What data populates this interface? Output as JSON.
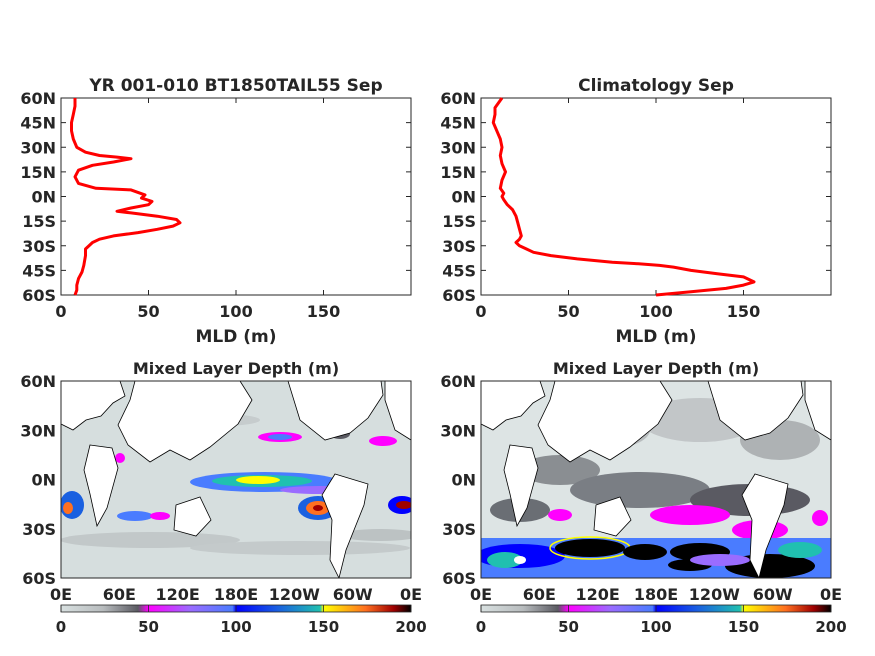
{
  "chart_data": [
    {
      "type": "line",
      "title": "YR 001-010 BT1850TAIL55 Sep",
      "xlabel": "MLD (m)",
      "ylabel": "",
      "xlim": [
        0,
        200
      ],
      "ylim": [
        -60,
        60
      ],
      "xticks": [
        "0",
        "50",
        "100",
        "150"
      ],
      "yticks": [
        "60N",
        "45N",
        "30N",
        "15N",
        "0N",
        "15S",
        "30S",
        "45S",
        "60S"
      ],
      "color": "#ff0000",
      "series": [
        {
          "x": [
            8,
            8,
            7,
            6,
            6,
            7,
            9,
            14,
            22,
            32,
            40,
            30,
            18,
            10,
            8,
            10,
            20,
            40,
            48,
            46,
            52,
            50,
            40,
            32,
            40,
            55,
            66,
            68,
            64,
            55,
            44,
            30,
            22,
            18,
            14,
            14,
            13,
            12,
            10,
            9,
            9,
            8
          ],
          "y": [
            60,
            55,
            50,
            45,
            40,
            35,
            30,
            27,
            25,
            24,
            23,
            21,
            19,
            16,
            12,
            8,
            5,
            4,
            1,
            -1,
            -3,
            -5,
            -7,
            -9,
            -10,
            -12,
            -14,
            -16,
            -18,
            -20,
            -22,
            -24,
            -26,
            -28,
            -32,
            -36,
            -42,
            -46,
            -50,
            -54,
            -57,
            -60
          ]
        }
      ]
    },
    {
      "type": "line",
      "title": "Climatology Sep",
      "xlabel": "MLD (m)",
      "ylabel": "",
      "xlim": [
        0,
        200
      ],
      "ylim": [
        -60,
        60
      ],
      "xticks": [
        "0",
        "50",
        "100",
        "150"
      ],
      "yticks": [
        "60N",
        "45N",
        "30N",
        "15N",
        "0N",
        "15S",
        "30S",
        "45S",
        "60S"
      ],
      "color": "#ff0000",
      "series": [
        {
          "x": [
            12,
            10,
            8,
            8,
            7,
            9,
            11,
            12,
            11,
            12,
            14,
            12,
            11,
            13,
            12,
            13,
            15,
            18,
            20,
            21,
            22,
            23,
            22,
            20,
            22,
            26,
            30,
            40,
            55,
            75,
            90,
            102,
            110,
            120,
            135,
            150,
            156,
            150,
            140,
            120,
            100
          ],
          "y": [
            60,
            57,
            54,
            50,
            45,
            40,
            35,
            30,
            25,
            20,
            15,
            10,
            5,
            2,
            0,
            -2,
            -5,
            -8,
            -12,
            -16,
            -20,
            -24,
            -26,
            -28,
            -30,
            -32,
            -34,
            -36,
            -38,
            -40,
            -41,
            -42,
            -43,
            -45,
            -47,
            -49,
            -52,
            -54,
            -56,
            -58,
            -60
          ]
        }
      ]
    },
    {
      "type": "heatmap",
      "title": "Mixed Layer Depth (m)",
      "xticks": [
        "0E",
        "60E",
        "120E",
        "180E",
        "120W",
        "60W",
        "0E"
      ],
      "yticks": [
        "60N",
        "30N",
        "0N",
        "30S",
        "60S"
      ],
      "colorbar": {
        "ticks": [
          "0",
          "50",
          "100",
          "150",
          "200"
        ],
        "range": [
          0,
          200
        ]
      }
    },
    {
      "type": "heatmap",
      "title": "Mixed Layer Depth (m)",
      "xticks": [
        "0E",
        "60E",
        "120E",
        "180E",
        "120W",
        "60W",
        "0E"
      ],
      "yticks": [
        "60N",
        "30N",
        "0N",
        "30S",
        "60S"
      ],
      "colorbar": {
        "ticks": [
          "0",
          "50",
          "100",
          "150",
          "200"
        ],
        "range": [
          0,
          200
        ]
      }
    }
  ]
}
